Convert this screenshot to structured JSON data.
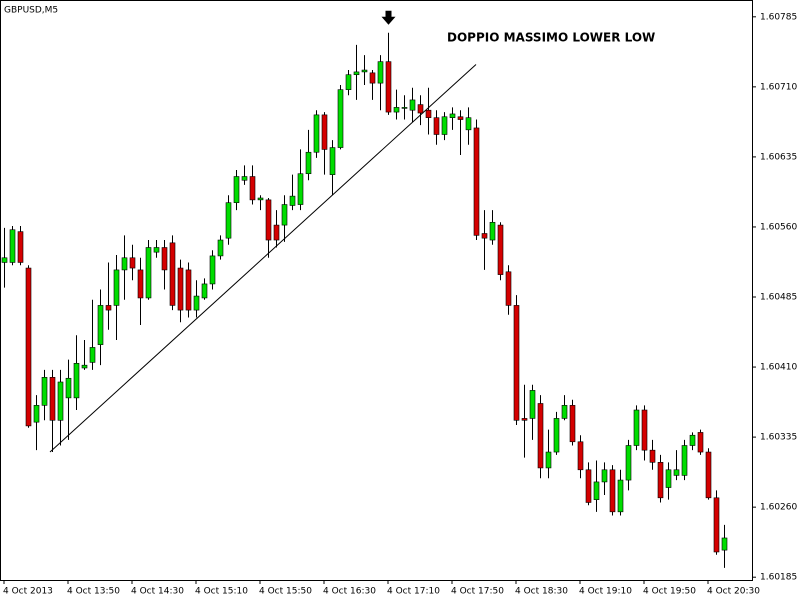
{
  "chart_data": {
    "type": "candlestick",
    "title": "GBPUSD,M5",
    "annotation": "DOPPIO MASSIMO LOWER LOW",
    "categories": [
      "4 Oct 2013",
      null,
      null,
      null,
      null,
      null,
      null,
      null,
      "4 Oct 13:50",
      null,
      null,
      null,
      null,
      null,
      null,
      null,
      "4 Oct 14:30",
      null,
      null,
      null,
      null,
      null,
      null,
      null,
      "4 Oct 15:10",
      null,
      null,
      null,
      null,
      null,
      null,
      null,
      "4 Oct 15:50",
      null,
      null,
      null,
      null,
      null,
      null,
      null,
      "4 Oct 16:30",
      null,
      null,
      null,
      null,
      null,
      null,
      null,
      "4 Oct 17:10",
      null,
      null,
      null,
      null,
      null,
      null,
      null,
      "4 Oct 17:50",
      null,
      null,
      null,
      null,
      null,
      null,
      null,
      "4 Oct 18:30",
      null,
      null,
      null,
      null,
      null,
      null,
      null,
      "4 Oct 19:10",
      null,
      null,
      null,
      null,
      null,
      null,
      null,
      "4 Oct 19:50",
      null,
      null,
      null,
      null,
      null,
      null,
      null,
      "4 Oct 20:30",
      null,
      null
    ],
    "open": [
      1.60522,
      1.60522,
      1.60555,
      1.60516,
      1.60351,
      1.60369,
      1.60399,
      1.60353,
      1.60377,
      1.60377,
      1.60409,
      1.60415,
      1.60434,
      1.60476,
      1.60476,
      1.60514,
      1.60527,
      1.60514,
      1.60484,
      1.60533,
      1.60538,
      1.60543,
      1.60516,
      1.60514,
      1.60471,
      1.60484,
      1.60499,
      1.60529,
      1.60548,
      1.60586,
      1.6061,
      1.60614,
      1.60589,
      1.60589,
      1.60562,
      1.60562,
      1.60583,
      1.60584,
      1.60617,
      1.6064,
      1.6068,
      1.60616,
      1.60645,
      1.60707,
      1.60723,
      1.60726,
      1.60725,
      1.60714,
      1.60737,
      1.60683,
      1.60688,
      1.60685,
      1.60691,
      1.60685,
      1.60677,
      1.60659,
      1.60677,
      1.60678,
      1.60664,
      1.60666,
      1.60553,
      1.60546,
      1.60562,
      1.60512,
      1.60476,
      1.60355,
      1.60355,
      1.60371,
      1.60302,
      1.60319,
      1.60355,
      1.60369,
      1.6033,
      1.603,
      1.60268,
      1.60287,
      1.603,
      1.60255,
      1.60289,
      1.60326,
      1.60364,
      1.60321,
      1.60308,
      1.60281,
      1.60294,
      1.60294,
      1.60326,
      1.6034,
      1.60319,
      1.6027,
      1.60214
    ],
    "high": [
      1.60559,
      1.60561,
      1.60561,
      1.60519,
      1.6038,
      1.60407,
      1.60407,
      1.60407,
      1.60418,
      1.60444,
      1.60439,
      1.60482,
      1.60493,
      1.60522,
      1.6053,
      1.60551,
      1.60541,
      1.60527,
      1.60546,
      1.60546,
      1.60546,
      1.60551,
      1.60525,
      1.60522,
      1.60503,
      1.60505,
      1.60535,
      1.60551,
      1.60594,
      1.60621,
      1.60626,
      1.60626,
      1.60594,
      1.60591,
      1.60578,
      1.60594,
      1.60616,
      1.60643,
      1.60664,
      1.60685,
      1.60683,
      1.60653,
      1.60712,
      1.60728,
      1.60755,
      1.60744,
      1.60728,
      1.60744,
      1.60768,
      1.60707,
      1.60701,
      1.60709,
      1.60701,
      1.60709,
      1.60685,
      1.60683,
      1.60688,
      1.60685,
      1.60688,
      1.60675,
      1.60578,
      1.60578,
      1.60565,
      1.60519,
      1.60487,
      1.60391,
      1.60391,
      1.6038,
      1.60343,
      1.60362,
      1.6038,
      1.60375,
      1.60337,
      1.60308,
      1.6031,
      1.60308,
      1.60305,
      1.603,
      1.60332,
      1.60369,
      1.60369,
      1.60332,
      1.60316,
      1.60308,
      1.60321,
      1.60332,
      1.6034,
      1.60343,
      1.60323,
      1.60278,
      1.60241
    ],
    "low": [
      1.60495,
      1.60519,
      1.60519,
      1.60345,
      1.60321,
      1.60353,
      1.60319,
      1.60326,
      1.60332,
      1.60364,
      1.60407,
      1.60407,
      1.60412,
      1.6045,
      1.60439,
      1.60482,
      1.60503,
      1.60455,
      1.60482,
      1.60527,
      1.60493,
      1.60471,
      1.60458,
      1.60463,
      1.60463,
      1.60482,
      1.60493,
      1.60525,
      1.60541,
      1.60578,
      1.60605,
      1.60584,
      1.60578,
      1.60527,
      1.60538,
      1.60544,
      1.60578,
      1.60578,
      1.6061,
      1.60634,
      1.60616,
      1.60594,
      1.60643,
      1.60701,
      1.60696,
      1.60712,
      1.60696,
      1.60685,
      1.6068,
      1.60675,
      1.60675,
      1.60672,
      1.60669,
      1.60659,
      1.60648,
      1.60653,
      1.60664,
      1.60637,
      1.60648,
      1.60546,
      1.60514,
      1.60541,
      1.60503,
      1.60466,
      1.60348,
      1.60313,
      1.60332,
      1.60291,
      1.60291,
      1.60316,
      1.60353,
      1.60326,
      1.60291,
      1.60262,
      1.60255,
      1.60273,
      1.60251,
      1.60251,
      1.60278,
      1.60321,
      1.6031,
      1.603,
      1.60265,
      1.60268,
      1.60289,
      1.60289,
      1.60321,
      1.60316,
      1.60268,
      1.60209,
      1.60195
    ],
    "close": [
      1.60527,
      1.60557,
      1.60522,
      1.60347,
      1.60369,
      1.60399,
      1.60353,
      1.60394,
      1.60398,
      1.60414,
      1.60412,
      1.60431,
      1.60476,
      1.60471,
      1.60514,
      1.60527,
      1.60516,
      1.60484,
      1.60538,
      1.60538,
      1.60514,
      1.60476,
      1.60471,
      1.60471,
      1.60486,
      1.60499,
      1.60529,
      1.60546,
      1.60586,
      1.60614,
      1.60614,
      1.60589,
      1.60591,
      1.60546,
      1.60546,
      1.60584,
      1.60593,
      1.60617,
      1.6064,
      1.6068,
      1.60643,
      1.60645,
      1.60707,
      1.60723,
      1.60726,
      1.60728,
      1.60714,
      1.60737,
      1.60683,
      1.60688,
      1.60688,
      1.60696,
      1.60682,
      1.60677,
      1.60659,
      1.60678,
      1.60681,
      1.60675,
      1.60677,
      1.60551,
      1.60548,
      1.60565,
      1.60509,
      1.60476,
      1.60353,
      1.60353,
      1.60385,
      1.60302,
      1.60319,
      1.60355,
      1.60369,
      1.6033,
      1.603,
      1.60265,
      1.60287,
      1.603,
      1.60255,
      1.60289,
      1.60326,
      1.60364,
      1.60321,
      1.60308,
      1.6027,
      1.603,
      1.603,
      1.60326,
      1.60337,
      1.60319,
      1.6027,
      1.60212,
      1.60227
    ],
    "up_color": "#00dd00",
    "down_color": "#d40000",
    "ylim": [
      1.60182,
      1.60803
    ],
    "yticks": [
      1.60785,
      {
        "value": 1.6071,
        "label": "1.60710"
      },
      1.60635,
      {
        "value": 1.6056,
        "label": "1.60560"
      },
      1.60485,
      {
        "value": 1.6041,
        "label": "1.60410"
      },
      1.60335,
      {
        "value": 1.6026,
        "label": "1.60260"
      },
      1.60185
    ],
    "trendline": {
      "x": [
        5.75,
        59
      ],
      "y": [
        1.60319,
        1.60734
      ]
    }
  }
}
